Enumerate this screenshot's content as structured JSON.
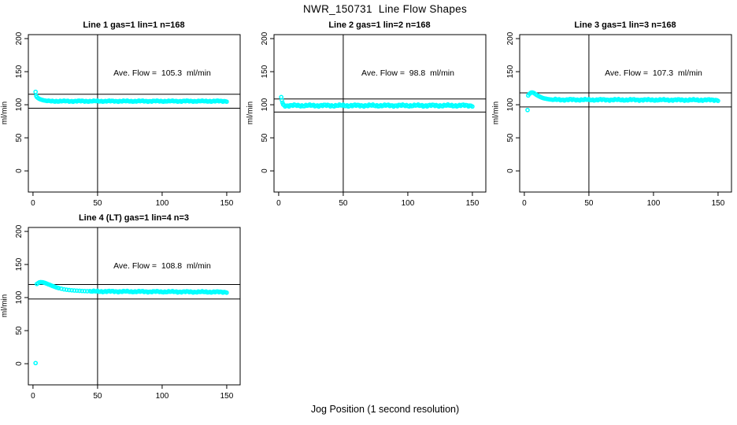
{
  "figure": {
    "title": "NWR_150731  Line Flow Shapes",
    "xlabel": "Jog Position (1 second resolution)",
    "ylabel": "ml/min",
    "colors": {
      "points": "#00FFFF",
      "axis": "#000000",
      "background": "#FFFFFF"
    }
  },
  "chart_data": [
    {
      "type": "scatter",
      "title": "Line 1 gas=1 lin=1 n=168",
      "annotation": "Ave. Flow =  105.3  ml/min",
      "ave_flow_ml_min": 105.3,
      "ylabel": "ml/min",
      "xticks": [
        0,
        50,
        100,
        150
      ],
      "yticks": [
        0,
        50,
        100,
        150,
        200
      ],
      "xlim": [
        -3.6,
        160.4
      ],
      "ylim": [
        -32,
        206
      ],
      "vline_x": 50,
      "hlines": [
        115.8,
        94.8
      ],
      "head_points": [
        [
          2,
          119.5
        ],
        [
          2.5,
          113.5
        ],
        [
          3,
          111.5
        ],
        [
          4,
          110
        ],
        [
          5,
          108.8
        ],
        [
          6,
          108
        ],
        [
          7,
          107.3
        ],
        [
          8,
          106.8
        ],
        [
          9,
          106.4
        ],
        [
          10,
          106
        ],
        [
          11,
          105.7
        ]
      ],
      "steady": {
        "x_from": 12,
        "x_to": 150,
        "x_step": 1,
        "y_base": 105.4,
        "y_amp": 1.1,
        "y_slope": 0
      }
    },
    {
      "type": "scatter",
      "title": "Line 2 gas=1 lin=2 n=168",
      "annotation": "Ave. Flow =  98.8  ml/min",
      "ave_flow_ml_min": 98.8,
      "ylabel": "ml/min",
      "xticks": [
        0,
        50,
        100,
        150
      ],
      "yticks": [
        0,
        50,
        100,
        150,
        200
      ],
      "xlim": [
        -3.6,
        160.4
      ],
      "ylim": [
        -32,
        206
      ],
      "vline_x": 50,
      "hlines": [
        108.7,
        88.9
      ],
      "head_points": [
        [
          2,
          111.5
        ],
        [
          2.5,
          107
        ],
        [
          3,
          103
        ],
        [
          3.5,
          100.5
        ],
        [
          4,
          99.5
        ]
      ],
      "steady": {
        "x_from": 5,
        "x_to": 150,
        "x_step": 1,
        "y_base": 98.8,
        "y_amp": 1.9,
        "y_slope": 0
      }
    },
    {
      "type": "scatter",
      "title": "Line 3 gas=1 lin=3 n=168",
      "annotation": "Ave. Flow =  107.3  ml/min",
      "ave_flow_ml_min": 107.3,
      "ylabel": "ml/min",
      "xticks": [
        0,
        50,
        100,
        150
      ],
      "yticks": [
        0,
        50,
        100,
        150,
        200
      ],
      "xlim": [
        -3.6,
        160.4
      ],
      "ylim": [
        -32,
        206
      ],
      "vline_x": 50,
      "hlines": [
        118.0,
        96.6
      ],
      "head_points": [
        [
          2.5,
          92
        ],
        [
          3,
          114
        ],
        [
          4,
          116.5
        ],
        [
          5,
          118
        ],
        [
          6,
          118.5
        ],
        [
          7,
          118
        ],
        [
          8,
          117
        ],
        [
          9,
          115.5
        ],
        [
          10,
          114.3
        ],
        [
          11,
          113.2
        ],
        [
          12,
          112.2
        ],
        [
          13,
          111.3
        ],
        [
          14,
          110.5
        ],
        [
          15,
          109.9
        ],
        [
          16,
          109.4
        ],
        [
          17,
          109
        ],
        [
          18,
          108.6
        ],
        [
          19,
          108.3
        ],
        [
          20,
          108
        ],
        [
          21,
          107.8
        ]
      ],
      "steady": {
        "x_from": 22,
        "x_to": 150,
        "x_step": 1,
        "y_base": 107.6,
        "y_amp": 1.5,
        "y_slope": -0.004
      }
    },
    {
      "type": "scatter",
      "title": "Line 4 (LT) gas=1 lin=4 n=3",
      "annotation": "Ave. Flow =  108.8  ml/min",
      "ave_flow_ml_min": 108.8,
      "ylabel": "ml/min",
      "xticks": [
        0,
        50,
        100,
        150
      ],
      "yticks": [
        0,
        50,
        100,
        150,
        200
      ],
      "xlim": [
        -3.6,
        160.4
      ],
      "ylim": [
        -32,
        206
      ],
      "vline_x": 50,
      "hlines": [
        119.7,
        97.9
      ],
      "head_points": [
        [
          2,
          1
        ],
        [
          3,
          120.5
        ],
        [
          4,
          122
        ],
        [
          5,
          123
        ],
        [
          6,
          123.3
        ],
        [
          7,
          123.2
        ],
        [
          8,
          122.8
        ],
        [
          9,
          122.2
        ],
        [
          10,
          121.5
        ],
        [
          11,
          120.8
        ],
        [
          12,
          120
        ],
        [
          13,
          119.2
        ],
        [
          14,
          118.4
        ],
        [
          15,
          117.6
        ],
        [
          16,
          116.9
        ],
        [
          17,
          116.2
        ],
        [
          18,
          115.5
        ],
        [
          19,
          114.9
        ],
        [
          20,
          114.3
        ],
        [
          22,
          113.3
        ],
        [
          24,
          112.5
        ],
        [
          26,
          111.9
        ],
        [
          28,
          111.4
        ],
        [
          30,
          111
        ],
        [
          32,
          110.7
        ],
        [
          34,
          110.4
        ],
        [
          36,
          110.2
        ],
        [
          38,
          110
        ],
        [
          40,
          109.8
        ],
        [
          42,
          109.6
        ]
      ],
      "steady": {
        "x_from": 44,
        "x_to": 150,
        "x_step": 1,
        "y_base": 109.4,
        "y_amp": 1.3,
        "y_slope": -0.01
      }
    }
  ]
}
